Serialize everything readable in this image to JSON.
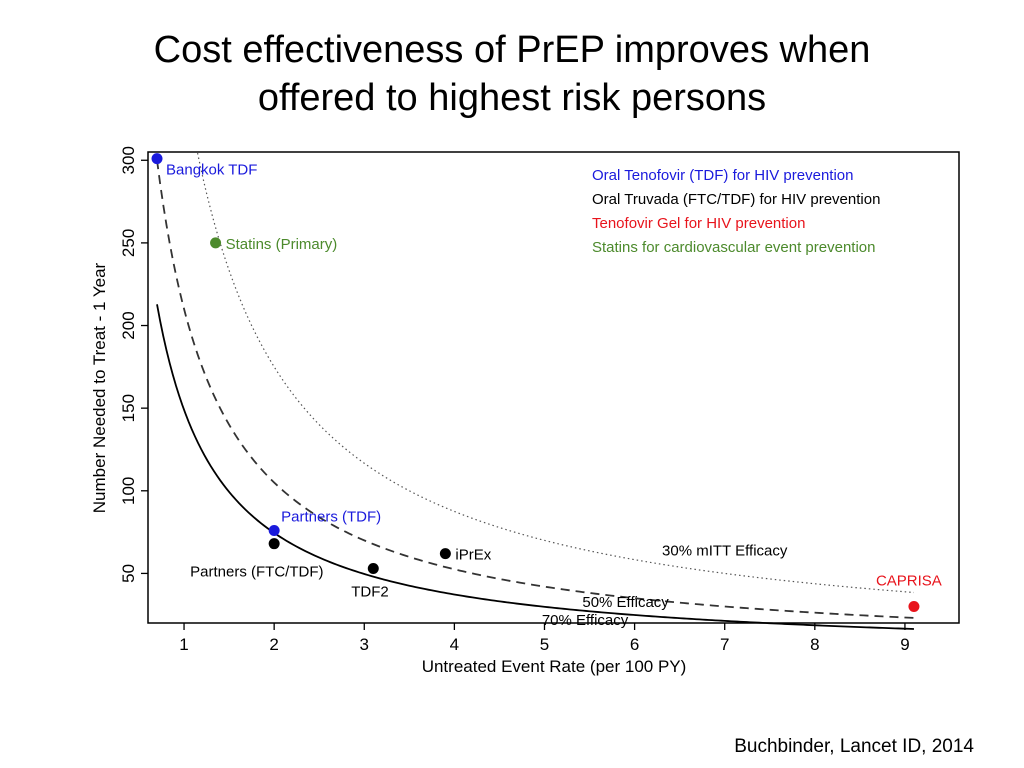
{
  "slide": {
    "title_line1": "Cost effectiveness of PrEP improves when",
    "title_line2": "offered to highest risk persons",
    "citation": "Buchbinder, Lancet ID, 2014"
  },
  "chart_data": {
    "type": "scatter",
    "xlabel": "Untreated Event Rate (per 100 PY)",
    "ylabel": "Number Needed to Treat - 1 Year",
    "xlim": [
      0.6,
      9.6
    ],
    "ylim": [
      20,
      305
    ],
    "x_ticks": [
      1,
      2,
      3,
      4,
      5,
      6,
      7,
      8,
      9
    ],
    "y_ticks": [
      50,
      100,
      150,
      200,
      250,
      300
    ],
    "grid": false,
    "legend_position": "top-right",
    "legend": [
      {
        "label": "Oral Tenofovir (TDF) for HIV prevention",
        "color": "#1a1adc"
      },
      {
        "label": "Oral Truvada (FTC/TDF) for HIV prevention",
        "color": "#000000"
      },
      {
        "label": "Tenofovir Gel for HIV prevention",
        "color": "#e8141c"
      },
      {
        "label": "Statins for cardiovascular event prevention",
        "color": "#4c8a2c"
      }
    ],
    "curves": [
      {
        "label": "30% mITT Efficacy",
        "style": "dotted",
        "k": 350,
        "x_range": [
          1.15,
          9.1
        ]
      },
      {
        "label": "50% Efficacy",
        "style": "dashed",
        "k": 210,
        "x_range": [
          0.7,
          9.1
        ]
      },
      {
        "label": "70% Efficacy",
        "style": "solid",
        "k": 149,
        "x_range": [
          0.7,
          9.1
        ]
      }
    ],
    "points": [
      {
        "label": "Bangkok TDF",
        "x": 0.7,
        "y": 301,
        "color": "#1a1adc"
      },
      {
        "label": "Statins (Primary)",
        "x": 1.35,
        "y": 250,
        "color": "#4c8a2c"
      },
      {
        "label": "Partners (TDF)",
        "x": 2.0,
        "y": 76,
        "color": "#1a1adc"
      },
      {
        "label": "Partners (FTC/TDF)",
        "x": 2.0,
        "y": 68,
        "color": "#000000"
      },
      {
        "label": "TDF2",
        "x": 3.1,
        "y": 53,
        "color": "#000000"
      },
      {
        "label": "iPrEx",
        "x": 3.9,
        "y": 62,
        "color": "#000000"
      },
      {
        "label": "CAPRISA",
        "x": 9.1,
        "y": 30,
        "color": "#e8141c"
      }
    ]
  }
}
